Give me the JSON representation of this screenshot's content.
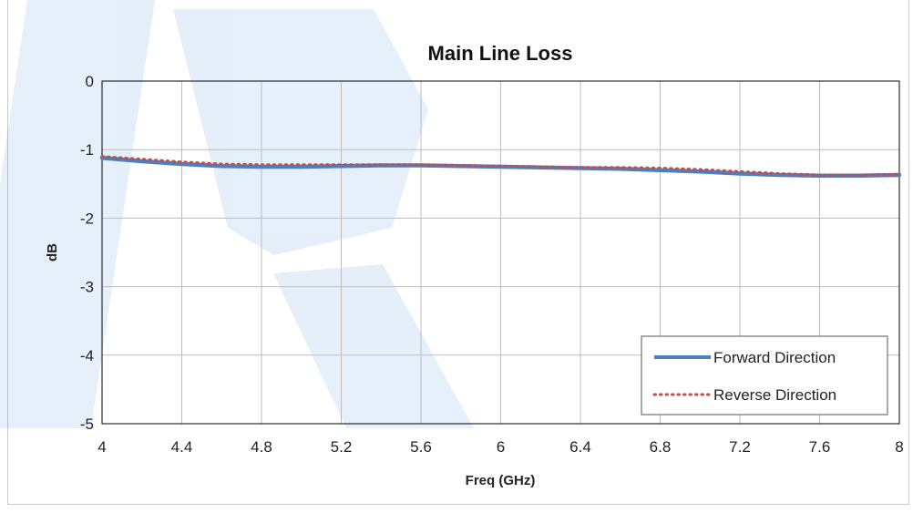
{
  "chart_data": {
    "type": "line",
    "title": "Main Line Loss",
    "xlabel": "Freq (GHz)",
    "ylabel": "dB",
    "xlim": [
      4,
      8
    ],
    "ylim": [
      -5,
      0
    ],
    "x_ticks": [
      "4",
      "4.4",
      "4.8",
      "5.2",
      "5.6",
      "6",
      "6.4",
      "6.8",
      "7.2",
      "7.6",
      "8"
    ],
    "y_ticks": [
      "0",
      "-1",
      "-2",
      "-3",
      "-4",
      "-5"
    ],
    "grid": true,
    "legend_position": "bottom-right",
    "series": [
      {
        "name": "Forward Direction",
        "color": "#4a7fc1",
        "style": "solid",
        "x": [
          4.0,
          4.2,
          4.4,
          4.6,
          4.8,
          5.0,
          5.2,
          5.4,
          5.6,
          5.8,
          6.0,
          6.2,
          6.4,
          6.6,
          6.8,
          7.0,
          7.2,
          7.4,
          7.6,
          7.8,
          8.0
        ],
        "y": [
          -1.12,
          -1.17,
          -1.21,
          -1.24,
          -1.25,
          -1.25,
          -1.24,
          -1.23,
          -1.23,
          -1.24,
          -1.25,
          -1.26,
          -1.27,
          -1.28,
          -1.3,
          -1.32,
          -1.35,
          -1.37,
          -1.38,
          -1.38,
          -1.37
        ]
      },
      {
        "name": "Reverse Direction",
        "color": "#c0504d",
        "style": "dotted",
        "x": [
          4.0,
          4.2,
          4.4,
          4.6,
          4.8,
          5.0,
          5.2,
          5.4,
          5.6,
          5.8,
          6.0,
          6.2,
          6.4,
          6.6,
          6.8,
          7.0,
          7.2,
          7.4,
          7.6,
          7.8,
          8.0
        ],
        "y": [
          -1.1,
          -1.14,
          -1.18,
          -1.21,
          -1.22,
          -1.22,
          -1.22,
          -1.22,
          -1.22,
          -1.23,
          -1.24,
          -1.25,
          -1.26,
          -1.26,
          -1.27,
          -1.29,
          -1.32,
          -1.35,
          -1.37,
          -1.37,
          -1.36
        ]
      }
    ]
  }
}
